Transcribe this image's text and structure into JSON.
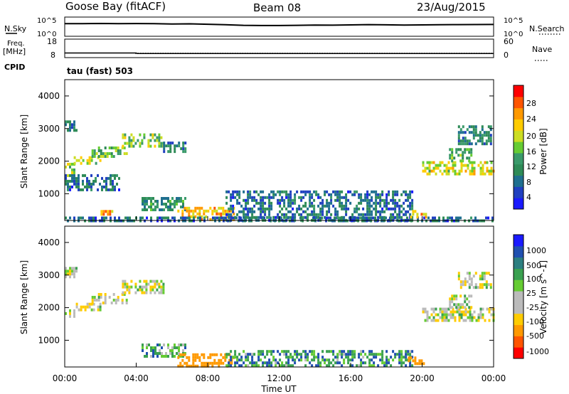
{
  "header": {
    "station": "Goose Bay (fitACF)",
    "beam": "Beam 08",
    "date": "23/Aug/2015"
  },
  "top_panels": {
    "nsky_label": "N.Sky",
    "nsky_ticks": [
      "10^5",
      "10^0"
    ],
    "nsearch_label": "N.Search",
    "nsearch_ticks": [
      "10^5",
      "10^0"
    ],
    "freq_label_1": "Freq.",
    "freq_label_2": "[MHz]",
    "freq_ticks": [
      "18",
      "8"
    ],
    "nave_label": "Nave",
    "nave_ticks": [
      "60",
      "0"
    ],
    "cpid_label": "CPID",
    "cpid_value": "tau (fast) 503"
  },
  "colors": {
    "power_scale": [
      "#1a1aff",
      "#2040c0",
      "#1f6f8f",
      "#2e8b57",
      "#3a9a6a",
      "#66cc33",
      "#ccdd22",
      "#ffcc00",
      "#ff9900",
      "#ff5500",
      "#ff0000"
    ],
    "velocity_scale": [
      "#1a1aff",
      "#2050b0",
      "#2c7f80",
      "#3aa050",
      "#66cc33",
      "#bbbbbb",
      "#bbbbbb",
      "#ffcc00",
      "#ff9900",
      "#ff5500",
      "#ff0000"
    ]
  },
  "chart_data": [
    {
      "type": "line",
      "panel": "N.Sky / N.Search",
      "xlabel": "",
      "ylabel": "N.Sky",
      "y2label": "N.Search",
      "xlim": [
        "00:00",
        "24:00"
      ],
      "yscale": "log",
      "ylim": [
        1,
        100000
      ],
      "series": [
        {
          "name": "N.Sky",
          "x_hours": [
            0,
            1,
            2,
            3,
            4,
            5,
            6,
            7,
            8,
            9,
            10,
            11,
            12,
            13,
            14,
            15,
            16,
            17,
            18,
            19,
            20,
            21,
            22,
            23,
            24
          ],
          "values": [
            3000,
            3000,
            3500,
            3000,
            3200,
            3000,
            2500,
            2800,
            2000,
            1500,
            1000,
            900,
            900,
            1000,
            1200,
            1100,
            1300,
            1600,
            1400,
            1200,
            1300,
            1500,
            1600,
            1700,
            1800
          ]
        }
      ]
    },
    {
      "type": "line",
      "panel": "Freq. / Nave",
      "ylabel": "Freq. [MHz]",
      "y2label": "Nave",
      "xlim": [
        "00:00",
        "24:00"
      ],
      "ylim": [
        8,
        18
      ],
      "y2lim": [
        0,
        60
      ],
      "series": [
        {
          "name": "Freq.",
          "x_hours": [
            0,
            4,
            4.05,
            24
          ],
          "values": [
            10.3,
            10.3,
            10.0,
            10.0
          ]
        }
      ]
    },
    {
      "type": "heatmap",
      "panel": "Power",
      "xlabel": "",
      "ylabel": "Slant Range [km]",
      "colorbar_label": "Power [dB]",
      "colorbar_ticks": [
        4,
        8,
        12,
        16,
        20,
        24,
        28
      ],
      "colorbar_range": [
        0,
        30
      ],
      "xlim_hours": [
        0,
        24
      ],
      "ylim": [
        180,
        4500
      ],
      "yticks": [
        1000,
        2000,
        3000,
        4000
      ],
      "regions": [
        {
          "t0": 0.0,
          "t1": 0.55,
          "r0": 1600,
          "r1": 1950,
          "value": 16
        },
        {
          "t0": 0.0,
          "t1": 0.6,
          "r0": 2950,
          "r1": 3250,
          "value": 8
        },
        {
          "t0": 0.5,
          "t1": 2.0,
          "r0": 1950,
          "r1": 2150,
          "value": 18
        },
        {
          "t0": 1.5,
          "t1": 3.5,
          "r0": 2150,
          "r1": 2450,
          "value": 14
        },
        {
          "t0": 3.2,
          "t1": 5.5,
          "r0": 2500,
          "r1": 2850,
          "value": 16
        },
        {
          "t0": 5.5,
          "t1": 6.8,
          "r0": 2300,
          "r1": 2600,
          "value": 8
        },
        {
          "t0": 0.0,
          "t1": 3.0,
          "r0": 1100,
          "r1": 1600,
          "value": 6
        },
        {
          "t0": 4.3,
          "t1": 6.7,
          "r0": 520,
          "r1": 900,
          "value": 10
        },
        {
          "t0": 2.0,
          "t1": 2.6,
          "r0": 330,
          "r1": 500,
          "value": 24
        },
        {
          "t0": 6.3,
          "t1": 9.5,
          "r0": 200,
          "r1": 600,
          "value": 22
        },
        {
          "t0": 0.0,
          "t1": 24.0,
          "r0": 180,
          "r1": 300,
          "value": 6
        },
        {
          "t0": 9.0,
          "t1": 19.5,
          "r0": 180,
          "r1": 1100,
          "value": 6
        },
        {
          "t0": 19.2,
          "t1": 20.2,
          "r0": 300,
          "r1": 500,
          "value": 22
        },
        {
          "t0": 20.0,
          "t1": 24.0,
          "r0": 1600,
          "r1": 2000,
          "value": 18
        },
        {
          "t0": 22.0,
          "t1": 23.8,
          "r0": 2500,
          "r1": 3100,
          "value": 8
        },
        {
          "t0": 21.5,
          "t1": 22.8,
          "r0": 2000,
          "r1": 2400,
          "value": 12
        }
      ]
    },
    {
      "type": "heatmap",
      "panel": "Velocity",
      "xlabel": "Time UT",
      "ylabel": "Slant Range [km]",
      "colorbar_label": "Velocity [m s^-1]",
      "colorbar_ticks": [
        1000,
        500,
        100,
        25,
        -25,
        -100,
        -500,
        -1000
      ],
      "xlim_hours": [
        0,
        24
      ],
      "xticks": [
        "00:00",
        "04:00",
        "08:00",
        "12:00",
        "16:00",
        "20:00",
        "00:00"
      ],
      "ylim": [
        180,
        4500
      ],
      "yticks": [
        1000,
        2000,
        3000,
        4000
      ],
      "regions": [
        {
          "t0": 0.0,
          "t1": 0.55,
          "r0": 1700,
          "r1": 1950,
          "value": 0
        },
        {
          "t0": 0.0,
          "t1": 0.6,
          "r0": 2950,
          "r1": 3250,
          "value": 0
        },
        {
          "t0": 0.5,
          "t1": 2.0,
          "r0": 1950,
          "r1": 2150,
          "value": 0
        },
        {
          "t0": 1.5,
          "t1": 3.5,
          "r0": 2150,
          "r1": 2450,
          "value": 0
        },
        {
          "t0": 3.2,
          "t1": 5.5,
          "r0": 2500,
          "r1": 2850,
          "value": 0
        },
        {
          "t0": 4.3,
          "t1": 6.7,
          "r0": 550,
          "r1": 900,
          "value": 60
        },
        {
          "t0": 6.3,
          "t1": 9.5,
          "r0": 200,
          "r1": 600,
          "value": -200
        },
        {
          "t0": 9.0,
          "t1": 19.5,
          "r0": 180,
          "r1": 700,
          "value": 80
        },
        {
          "t0": 19.2,
          "t1": 20.2,
          "r0": 300,
          "r1": 500,
          "value": -200
        },
        {
          "t0": 20.0,
          "t1": 24.0,
          "r0": 1650,
          "r1": 2000,
          "value": 0
        },
        {
          "t0": 21.5,
          "t1": 22.8,
          "r0": 2000,
          "r1": 2400,
          "value": 0
        },
        {
          "t0": 22.0,
          "t1": 23.8,
          "r0": 2600,
          "r1": 3100,
          "value": 0
        }
      ]
    }
  ]
}
